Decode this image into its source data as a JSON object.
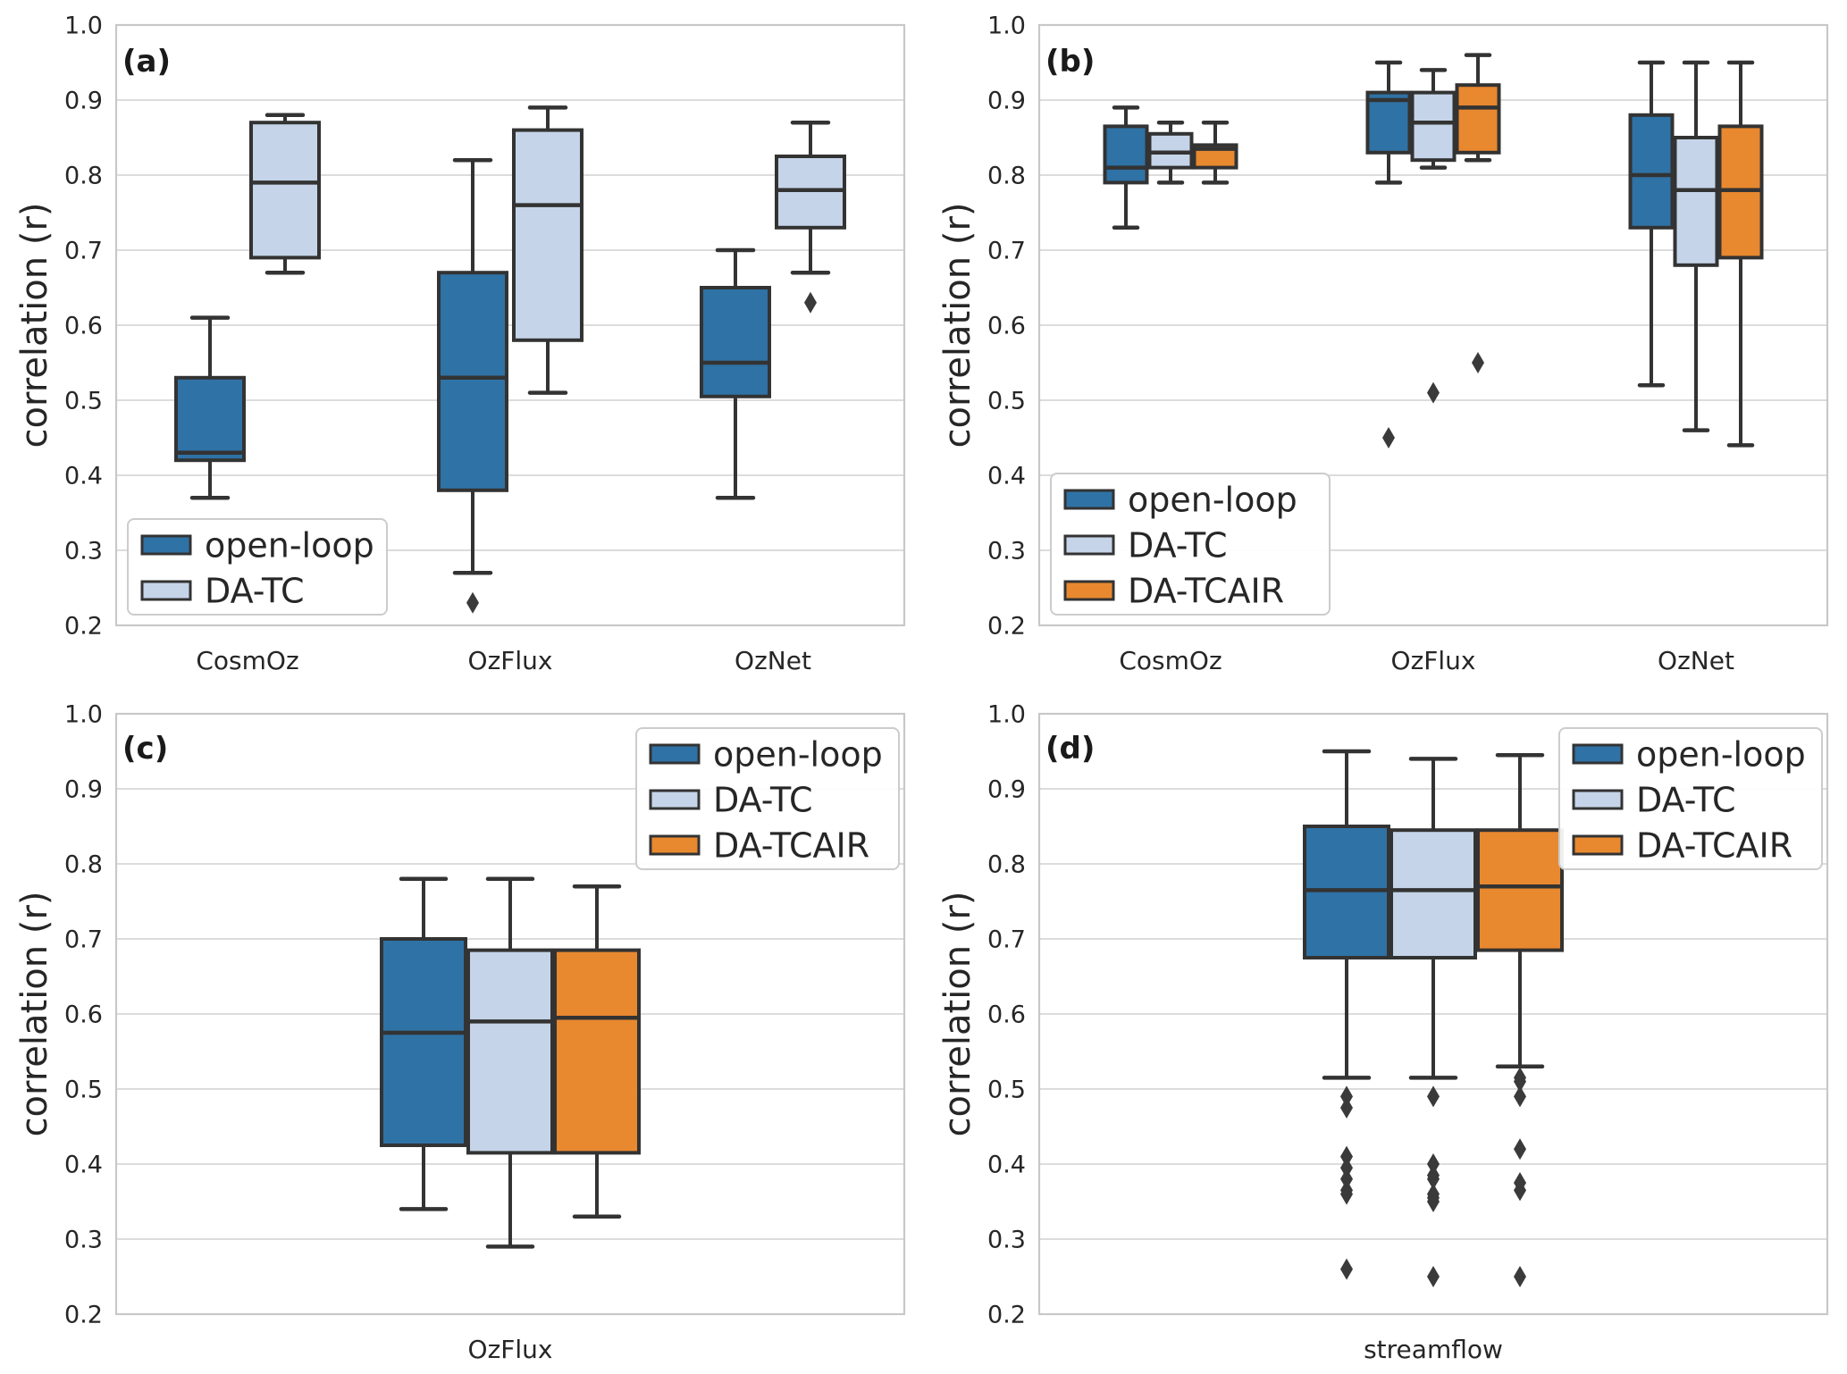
{
  "figure": {
    "background": "#ffffff",
    "description": "2x2 grid of seaborn-style box plots comparing correlation of open-loop, DA-TC and DA-TCAIR experiments"
  },
  "colors": {
    "series": {
      "open-loop": "#2f72a5",
      "DA-TC": "#c5d4e8",
      "DA-TCAIR": "#e8882f"
    },
    "box_edge": "#333333",
    "median": "#333333",
    "whisker": "#333333",
    "outlier": "#3a3a3a",
    "grid": "#dcdcdc",
    "axes_border": "#c8c8c8",
    "text": "#262626",
    "panel_letter": "#1a1a1a",
    "legend_border": "#cccccc",
    "legend_background": "#ffffff"
  },
  "chart_data": [
    {
      "type": "box",
      "panel_label": "(a)",
      "ylabel": "correlation (r)",
      "ylim": [
        0.2,
        1.0
      ],
      "yticks": [
        1.0,
        0.9,
        0.8,
        0.7,
        0.6,
        0.5,
        0.4,
        0.3,
        0.2
      ],
      "grid": "horizontal",
      "categories": [
        "CosmOz",
        "OzFlux",
        "OzNet"
      ],
      "legend_position": "bottom-left",
      "series": [
        {
          "name": "open-loop",
          "boxes": [
            {
              "category": "CosmOz",
              "whislo": 0.37,
              "q1": 0.42,
              "med": 0.43,
              "q3": 0.53,
              "whishi": 0.61,
              "outliers": []
            },
            {
              "category": "OzFlux",
              "whislo": 0.27,
              "q1": 0.38,
              "med": 0.53,
              "q3": 0.67,
              "whishi": 0.82,
              "outliers": [
                0.23
              ]
            },
            {
              "category": "OzNet",
              "whislo": 0.37,
              "q1": 0.505,
              "med": 0.55,
              "q3": 0.65,
              "whishi": 0.7,
              "outliers": []
            }
          ]
        },
        {
          "name": "DA-TC",
          "boxes": [
            {
              "category": "CosmOz",
              "whislo": 0.67,
              "q1": 0.69,
              "med": 0.79,
              "q3": 0.87,
              "whishi": 0.88,
              "outliers": []
            },
            {
              "category": "OzFlux",
              "whislo": 0.51,
              "q1": 0.58,
              "med": 0.76,
              "q3": 0.86,
              "whishi": 0.89,
              "outliers": []
            },
            {
              "category": "OzNet",
              "whislo": 0.67,
              "q1": 0.73,
              "med": 0.78,
              "q3": 0.825,
              "whishi": 0.87,
              "outliers": [
                0.63
              ]
            }
          ]
        }
      ]
    },
    {
      "type": "box",
      "panel_label": "(b)",
      "ylabel": "correlation (r)",
      "ylim": [
        0.2,
        1.0
      ],
      "yticks": [
        1.0,
        0.9,
        0.8,
        0.7,
        0.6,
        0.5,
        0.4,
        0.3,
        0.2
      ],
      "grid": "horizontal",
      "categories": [
        "CosmOz",
        "OzFlux",
        "OzNet"
      ],
      "legend_position": "bottom-left",
      "series": [
        {
          "name": "open-loop",
          "boxes": [
            {
              "category": "CosmOz",
              "whislo": 0.73,
              "q1": 0.79,
              "med": 0.81,
              "q3": 0.865,
              "whishi": 0.89,
              "outliers": []
            },
            {
              "category": "OzFlux",
              "whislo": 0.79,
              "q1": 0.83,
              "med": 0.9,
              "q3": 0.91,
              "whishi": 0.95,
              "outliers": [
                0.45
              ]
            },
            {
              "category": "OzNet",
              "whislo": 0.52,
              "q1": 0.73,
              "med": 0.8,
              "q3": 0.88,
              "whishi": 0.95,
              "outliers": []
            }
          ]
        },
        {
          "name": "DA-TC",
          "boxes": [
            {
              "category": "CosmOz",
              "whislo": 0.79,
              "q1": 0.81,
              "med": 0.83,
              "q3": 0.855,
              "whishi": 0.87,
              "outliers": []
            },
            {
              "category": "OzFlux",
              "whislo": 0.81,
              "q1": 0.82,
              "med": 0.87,
              "q3": 0.91,
              "whishi": 0.94,
              "outliers": [
                0.51
              ]
            },
            {
              "category": "OzNet",
              "whislo": 0.46,
              "q1": 0.68,
              "med": 0.78,
              "q3": 0.85,
              "whishi": 0.95,
              "outliers": []
            }
          ]
        },
        {
          "name": "DA-TCAIR",
          "boxes": [
            {
              "category": "CosmOz",
              "whislo": 0.79,
              "q1": 0.81,
              "med": 0.835,
              "q3": 0.84,
              "whishi": 0.87,
              "outliers": []
            },
            {
              "category": "OzFlux",
              "whislo": 0.82,
              "q1": 0.83,
              "med": 0.89,
              "q3": 0.92,
              "whishi": 0.96,
              "outliers": [
                0.55
              ]
            },
            {
              "category": "OzNet",
              "whislo": 0.44,
              "q1": 0.69,
              "med": 0.78,
              "q3": 0.865,
              "whishi": 0.95,
              "outliers": []
            }
          ]
        }
      ]
    },
    {
      "type": "box",
      "panel_label": "(c)",
      "ylabel": "correlation (r)",
      "ylim": [
        0.2,
        1.0
      ],
      "yticks": [
        1.0,
        0.9,
        0.8,
        0.7,
        0.6,
        0.5,
        0.4,
        0.3,
        0.2
      ],
      "grid": "horizontal",
      "categories": [
        "OzFlux"
      ],
      "legend_position": "top-right",
      "series": [
        {
          "name": "open-loop",
          "boxes": [
            {
              "category": "OzFlux",
              "whislo": 0.34,
              "q1": 0.425,
              "med": 0.575,
              "q3": 0.7,
              "whishi": 0.78,
              "outliers": []
            }
          ]
        },
        {
          "name": "DA-TC",
          "boxes": [
            {
              "category": "OzFlux",
              "whislo": 0.29,
              "q1": 0.415,
              "med": 0.59,
              "q3": 0.685,
              "whishi": 0.78,
              "outliers": []
            }
          ]
        },
        {
          "name": "DA-TCAIR",
          "boxes": [
            {
              "category": "OzFlux",
              "whislo": 0.33,
              "q1": 0.415,
              "med": 0.595,
              "q3": 0.685,
              "whishi": 0.77,
              "outliers": []
            }
          ]
        }
      ]
    },
    {
      "type": "box",
      "panel_label": "(d)",
      "ylabel": "correlation (r)",
      "ylim": [
        0.2,
        1.0
      ],
      "yticks": [
        1.0,
        0.9,
        0.8,
        0.7,
        0.6,
        0.5,
        0.4,
        0.3,
        0.2
      ],
      "grid": "horizontal",
      "categories": [
        "streamflow"
      ],
      "legend_position": "top-right",
      "series": [
        {
          "name": "open-loop",
          "boxes": [
            {
              "category": "streamflow",
              "whislo": 0.515,
              "q1": 0.675,
              "med": 0.765,
              "q3": 0.85,
              "whishi": 0.95,
              "outliers": [
                0.49,
                0.475,
                0.41,
                0.395,
                0.38,
                0.365,
                0.36,
                0.26
              ]
            }
          ]
        },
        {
          "name": "DA-TC",
          "boxes": [
            {
              "category": "streamflow",
              "whislo": 0.515,
              "q1": 0.675,
              "med": 0.765,
              "q3": 0.845,
              "whishi": 0.94,
              "outliers": [
                0.49,
                0.4,
                0.385,
                0.38,
                0.36,
                0.355,
                0.35,
                0.25
              ]
            }
          ]
        },
        {
          "name": "DA-TCAIR",
          "boxes": [
            {
              "category": "streamflow",
              "whislo": 0.53,
              "q1": 0.685,
              "med": 0.77,
              "q3": 0.845,
              "whishi": 0.945,
              "outliers": [
                0.515,
                0.51,
                0.49,
                0.42,
                0.375,
                0.365,
                0.25
              ]
            }
          ]
        }
      ]
    }
  ]
}
